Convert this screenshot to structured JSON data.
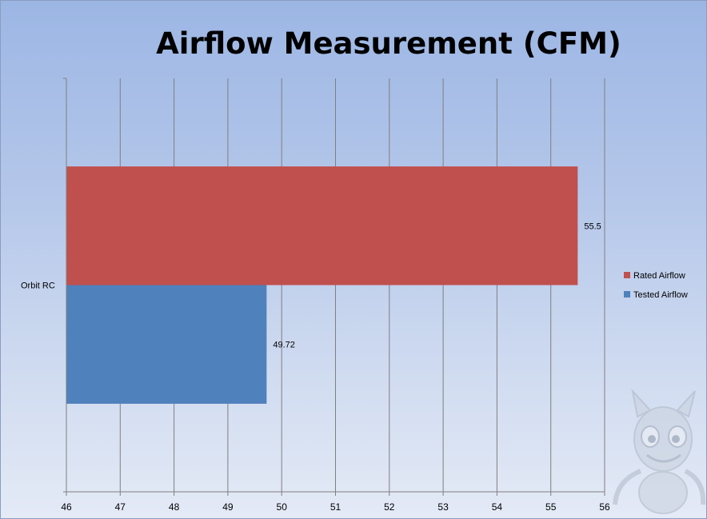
{
  "chart_data": {
    "type": "bar",
    "orientation": "horizontal",
    "title": "Airflow Measurement (CFM)",
    "categories": [
      "Orbit RC"
    ],
    "series": [
      {
        "name": "Rated Airflow",
        "values": [
          55.5
        ],
        "color": "#c0504d"
      },
      {
        "name": "Tested Airflow",
        "values": [
          49.72
        ],
        "color": "#4f81bd"
      }
    ],
    "xlim": [
      46,
      56
    ],
    "x_ticks": [
      "46",
      "47",
      "48",
      "49",
      "50",
      "51",
      "52",
      "53",
      "54",
      "55",
      "56"
    ],
    "data_labels": [
      "55.5",
      "49.72"
    ],
    "grid": true,
    "legend_position": "right"
  }
}
